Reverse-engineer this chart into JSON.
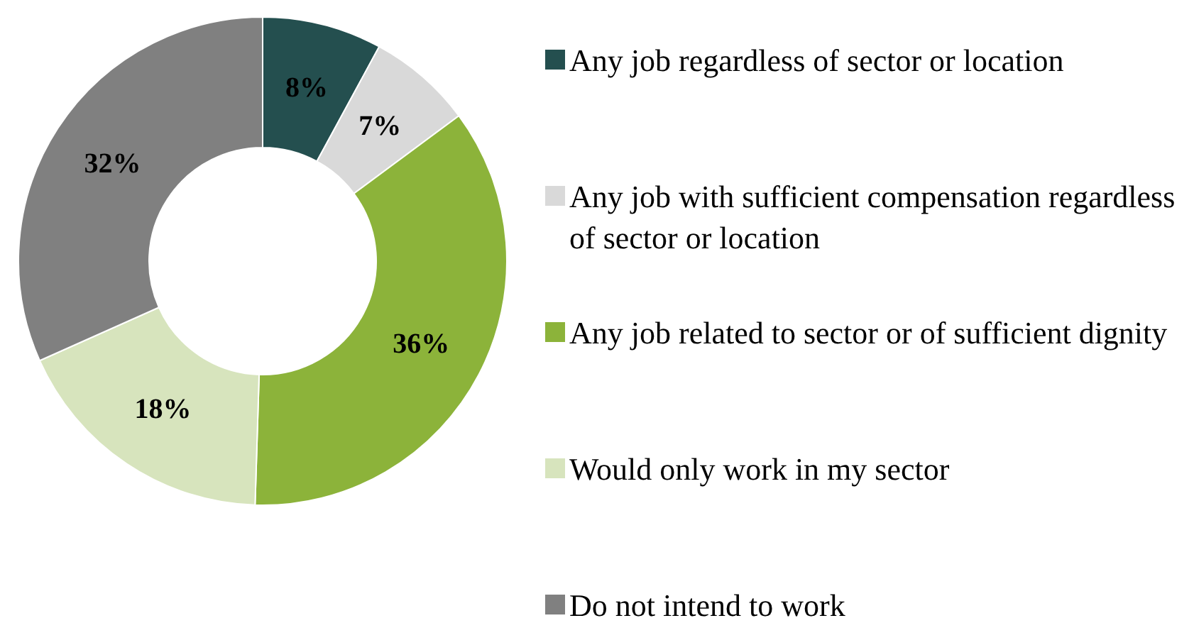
{
  "chart_data": {
    "type": "donut",
    "categories": [
      "Any job regardless of sector or location",
      "Any job with sufficient compensation regardless of sector or location",
      "Any job related to sector or of sufficient dignity",
      "Would only work in my sector",
      "Do not intend to work"
    ],
    "values": [
      8,
      7,
      36,
      18,
      32
    ],
    "colors": [
      "#244f4f",
      "#d9d9d9",
      "#8cb33a",
      "#d7e4bd",
      "#808080"
    ],
    "value_labels": [
      "8%",
      "7%",
      "36%",
      "18%",
      "32%"
    ],
    "legend": "right"
  }
}
